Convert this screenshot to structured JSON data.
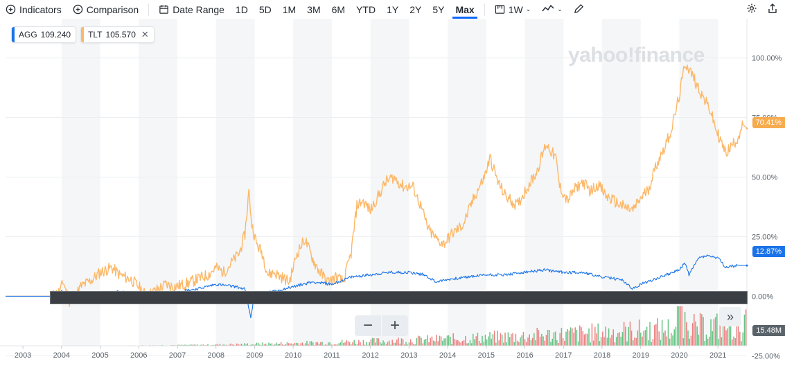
{
  "toolbar": {
    "indicators_label": "Indicators",
    "comparison_label": "Comparison",
    "date_range_label": "Date Range",
    "ranges": [
      "1D",
      "5D",
      "1M",
      "3M",
      "6M",
      "YTD",
      "1Y",
      "2Y",
      "5Y",
      "Max"
    ],
    "active_range": "Max",
    "interval_label": "1W"
  },
  "watermark": "yahoo!finance",
  "legend": [
    {
      "symbol": "AGG",
      "value": "109.240",
      "color": "#1a73e8"
    },
    {
      "symbol": "TLT",
      "value": "105.570",
      "color": "#fcb868",
      "removable": true
    }
  ],
  "tags": {
    "tlt_pct": "70.41%",
    "agg_pct": "12.87%",
    "volume": "15.48M"
  },
  "colors": {
    "agg": "#1a73e8",
    "tlt": "#fcb868",
    "grid_band": "#f5f6f7",
    "volume_up": "#4cba6f",
    "volume_down": "#ea6b6b"
  },
  "chart_data": {
    "type": "line",
    "title": "",
    "xlabel": "",
    "ylabel": "",
    "ylim": [
      -25,
      110
    ],
    "y_ticks": [
      "100.00%",
      "75.00%",
      "50.00%",
      "25.00%",
      "0.00%",
      "-25.00%"
    ],
    "y_tick_values": [
      100,
      75,
      50,
      25,
      0,
      -25
    ],
    "x_ticks": [
      "2003",
      "2004",
      "2005",
      "2006",
      "2007",
      "2008",
      "2009",
      "2010",
      "2011",
      "2012",
      "2013",
      "2014",
      "2015",
      "2016",
      "2017",
      "2018",
      "2019",
      "2020",
      "2021"
    ],
    "xlim": [
      2002.55,
      2021.75
    ],
    "series": [
      {
        "name": "TLT",
        "x": [
          2002.55,
          2003.75,
          2003.95,
          2004.05,
          2004.2,
          2004.35,
          2004.5,
          2004.8,
          2005.0,
          2005.3,
          2005.5,
          2005.8,
          2006.0,
          2006.2,
          2006.4,
          2006.7,
          2006.9,
          2007.2,
          2007.5,
          2007.8,
          2008.0,
          2008.2,
          2008.4,
          2008.6,
          2008.75,
          2008.85,
          2008.93,
          2009.05,
          2009.2,
          2009.35,
          2009.5,
          2009.7,
          2009.9,
          2010.1,
          2010.3,
          2010.55,
          2010.7,
          2010.9,
          2011.1,
          2011.3,
          2011.5,
          2011.65,
          2011.8,
          2012.0,
          2012.2,
          2012.4,
          2012.6,
          2012.85,
          2013.1,
          2013.3,
          2013.5,
          2013.7,
          2013.9,
          2014.1,
          2014.4,
          2014.7,
          2014.95,
          2015.1,
          2015.3,
          2015.5,
          2015.8,
          2016.0,
          2016.3,
          2016.55,
          2016.8,
          2016.9,
          2017.1,
          2017.3,
          2017.5,
          2017.7,
          2017.9,
          2018.1,
          2018.3,
          2018.5,
          2018.8,
          2018.95,
          2019.2,
          2019.4,
          2019.6,
          2019.8,
          2020.0,
          2020.15,
          2020.3,
          2020.45,
          2020.6,
          2020.8,
          2020.95,
          2021.1,
          2021.2,
          2021.35,
          2021.5,
          2021.65,
          2021.75
        ],
        "y": [
          0,
          0,
          2,
          6,
          -2,
          0,
          4,
          7,
          10,
          12,
          9,
          7,
          4,
          0,
          2,
          5,
          4,
          5,
          7,
          9,
          12,
          10,
          14,
          18,
          26,
          44,
          30,
          22,
          18,
          9,
          10,
          8,
          6,
          18,
          24,
          14,
          10,
          6,
          8,
          6,
          18,
          38,
          40,
          36,
          42,
          48,
          50,
          46,
          46,
          38,
          28,
          24,
          22,
          26,
          30,
          42,
          50,
          58,
          48,
          42,
          38,
          44,
          52,
          64,
          58,
          46,
          40,
          45,
          48,
          44,
          47,
          42,
          40,
          38,
          36,
          40,
          45,
          55,
          62,
          70,
          84,
          98,
          94,
          89,
          84,
          78,
          70,
          64,
          60,
          63,
          66,
          72,
          70.41
        ]
      },
      {
        "name": "AGG",
        "x": [
          2002.55,
          2003.75,
          2004.0,
          2004.2,
          2004.5,
          2005.0,
          2005.5,
          2006.0,
          2006.5,
          2007.0,
          2007.5,
          2008.0,
          2008.5,
          2008.75,
          2008.9,
          2009.0,
          2009.5,
          2010.0,
          2010.5,
          2011.0,
          2011.5,
          2012.0,
          2012.5,
          2013.0,
          2013.4,
          2013.7,
          2014.0,
          2014.5,
          2015.0,
          2015.5,
          2016.0,
          2016.5,
          2017.0,
          2017.5,
          2018.0,
          2018.5,
          2018.8,
          2019.0,
          2019.5,
          2020.0,
          2020.15,
          2020.25,
          2020.5,
          2020.7,
          2021.0,
          2021.2,
          2021.5,
          2021.75
        ],
        "y": [
          0,
          0,
          2,
          -1,
          1,
          1,
          2,
          0,
          1,
          2,
          3,
          5,
          4,
          3,
          -9,
          1,
          2,
          4,
          6,
          5,
          8,
          9,
          10,
          10,
          9,
          6,
          7,
          8,
          9,
          9,
          10,
          11,
          10,
          10,
          8,
          7,
          3,
          5,
          8,
          11,
          14,
          9,
          16,
          17,
          16,
          12,
          13,
          12.87
        ]
      }
    ],
    "volume_series": {
      "name": "Volume",
      "max_label": "15.48M"
    }
  }
}
